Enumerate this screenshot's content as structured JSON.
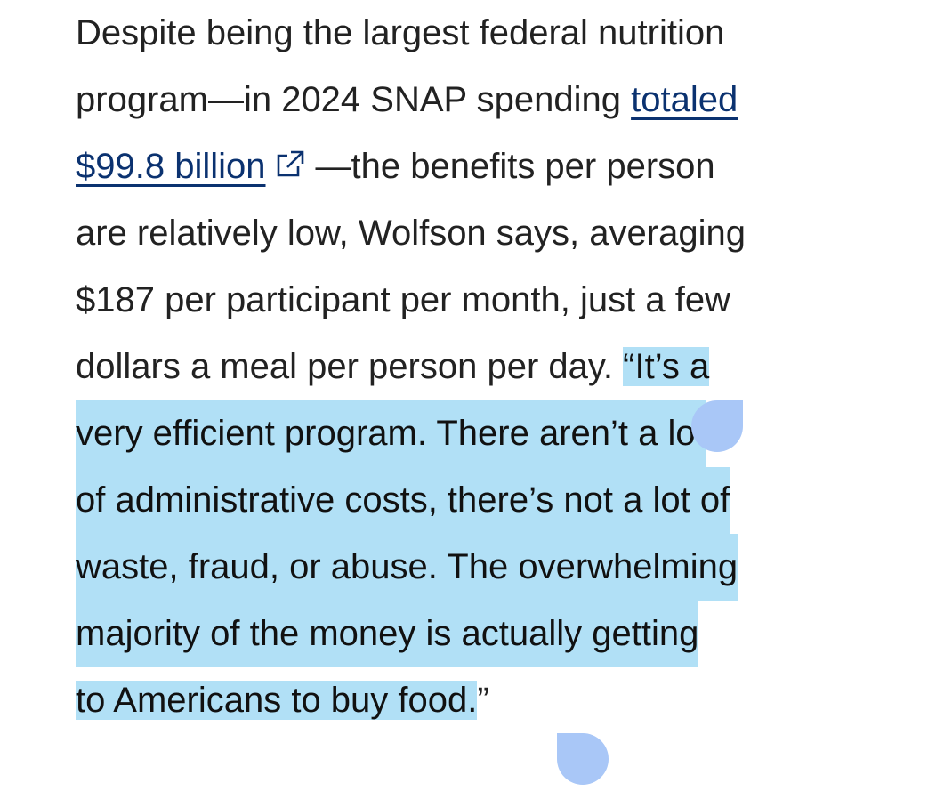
{
  "paragraph": {
    "line1": "Despite being the largest federal nutrition",
    "line2_pre": "program—in 2024 SNAP spending ",
    "link_part1": "totaled",
    "link_part2": "$99.8 billion",
    "link_icon": "external-link-icon",
    "line3_post": "—the benefits per person",
    "line4": "are relatively low, Wolfson says, averaging",
    "line5": "$187 per participant per month, just a few",
    "line6_pre": "dollars a meal per person per day. ",
    "quote_1": "“It’s a",
    "quote_2": "very efficient program. There aren’t a lot",
    "quote_3": "of administrative costs, there’s not a lot of",
    "quote_4": "waste, fraud, or abuse. The overwhelming",
    "quote_5": "majority of the money is actually getting",
    "quote_6": "to Americans to buy food.",
    "quote_close": "”"
  },
  "colors": {
    "text": "#222222",
    "link": "#0b3270",
    "selection": "#b1e0f6",
    "selection_handle": "#a9c7f7"
  }
}
